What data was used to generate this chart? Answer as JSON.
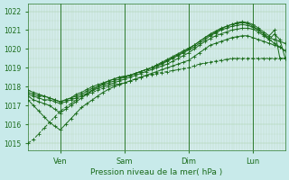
{
  "background_color": "#c8eaea",
  "plot_bg_color": "#d4ecec",
  "grid_color_minor": "#b0d4b0",
  "grid_color_major": "#90bc90",
  "line_color": "#1a6b1a",
  "title": "Pression niveau de la mer( hPa )",
  "ylabel_ticks": [
    1015,
    1016,
    1017,
    1018,
    1019,
    1020,
    1021,
    1022
  ],
  "ylim": [
    1014.6,
    1022.4
  ],
  "xlim": [
    0,
    96
  ],
  "xtick_positions": [
    12,
    36,
    60,
    84
  ],
  "xtick_labels": [
    "Ven",
    "Sam",
    "Dim",
    "Lun"
  ],
  "vline_positions": [
    12,
    36,
    60,
    84
  ],
  "vline_color": "#2d7a2d",
  "line_width": 0.7,
  "marker_style": "+",
  "marker_size": 2.5,
  "series": [
    {
      "name": "s1_low_dashed",
      "x": [
        0,
        2,
        4,
        6,
        8,
        10,
        12,
        14,
        16,
        18,
        20,
        22,
        24,
        26,
        28,
        30,
        32,
        34,
        36,
        38,
        40,
        42,
        44,
        46,
        48,
        50,
        52,
        54,
        56,
        58,
        60,
        62,
        64,
        66,
        68,
        70,
        72,
        74,
        76,
        78,
        80,
        82,
        84,
        86,
        88,
        90,
        92,
        94,
        96
      ],
      "y": [
        1015.0,
        1015.2,
        1015.5,
        1015.8,
        1016.1,
        1016.4,
        1016.7,
        1016.9,
        1017.1,
        1017.3,
        1017.5,
        1017.6,
        1017.7,
        1017.8,
        1017.9,
        1018.0,
        1018.1,
        1018.15,
        1018.2,
        1018.3,
        1018.4,
        1018.5,
        1018.6,
        1018.65,
        1018.7,
        1018.75,
        1018.8,
        1018.85,
        1018.9,
        1018.95,
        1019.0,
        1019.1,
        1019.2,
        1019.25,
        1019.3,
        1019.35,
        1019.4,
        1019.45,
        1019.5,
        1019.5,
        1019.5,
        1019.5,
        1019.5,
        1019.5,
        1019.5,
        1019.5,
        1019.5,
        1019.5,
        1019.5
      ],
      "dashed": true
    },
    {
      "name": "s2_dip_low",
      "x": [
        0,
        2,
        4,
        6,
        8,
        10,
        12,
        14,
        16,
        18,
        20,
        22,
        24,
        26,
        28,
        30,
        32,
        34,
        36,
        38,
        40,
        42,
        44,
        46,
        48,
        50,
        52,
        54,
        56,
        58,
        60,
        62,
        64,
        66,
        68,
        70,
        72,
        74,
        76,
        78,
        80,
        82,
        84,
        86,
        88,
        90,
        92,
        94,
        96
      ],
      "y": [
        1017.3,
        1017.0,
        1016.7,
        1016.4,
        1016.1,
        1015.9,
        1015.7,
        1016.0,
        1016.3,
        1016.6,
        1016.9,
        1017.1,
        1017.3,
        1017.5,
        1017.7,
        1017.85,
        1018.0,
        1018.1,
        1018.2,
        1018.3,
        1018.4,
        1018.5,
        1018.6,
        1018.7,
        1018.8,
        1018.9,
        1019.0,
        1019.1,
        1019.2,
        1019.3,
        1019.4,
        1019.6,
        1019.8,
        1020.0,
        1020.2,
        1020.3,
        1020.4,
        1020.5,
        1020.6,
        1020.65,
        1020.7,
        1020.7,
        1020.6,
        1020.5,
        1020.4,
        1020.3,
        1020.2,
        1020.1,
        1019.9
      ],
      "dashed": false
    },
    {
      "name": "s3_top_arc",
      "x": [
        0,
        2,
        4,
        6,
        8,
        10,
        12,
        14,
        16,
        18,
        20,
        22,
        24,
        26,
        28,
        30,
        32,
        34,
        36,
        38,
        40,
        42,
        44,
        46,
        48,
        50,
        52,
        54,
        56,
        58,
        60,
        62,
        64,
        66,
        68,
        70,
        72,
        74,
        76,
        78,
        80,
        82,
        84,
        86,
        88,
        90,
        92,
        94,
        96
      ],
      "y": [
        1017.5,
        1017.3,
        1017.2,
        1017.1,
        1017.0,
        1016.8,
        1016.6,
        1016.8,
        1017.0,
        1017.2,
        1017.4,
        1017.6,
        1017.8,
        1018.0,
        1018.15,
        1018.3,
        1018.4,
        1018.5,
        1018.55,
        1018.6,
        1018.7,
        1018.8,
        1018.9,
        1019.0,
        1019.1,
        1019.25,
        1019.4,
        1019.55,
        1019.7,
        1019.85,
        1020.0,
        1020.2,
        1020.4,
        1020.6,
        1020.8,
        1020.95,
        1021.1,
        1021.2,
        1021.3,
        1021.35,
        1021.4,
        1021.35,
        1021.2,
        1021.0,
        1020.8,
        1020.6,
        1020.5,
        1020.4,
        1020.3
      ],
      "dashed": false
    },
    {
      "name": "s4_mid",
      "x": [
        0,
        2,
        4,
        6,
        8,
        10,
        12,
        14,
        16,
        18,
        20,
        22,
        24,
        26,
        28,
        30,
        32,
        34,
        36,
        38,
        40,
        42,
        44,
        46,
        48,
        50,
        52,
        54,
        56,
        58,
        60,
        62,
        64,
        66,
        68,
        70,
        72,
        74,
        76,
        78,
        80,
        82,
        84,
        86,
        88,
        90,
        92,
        94,
        96
      ],
      "y": [
        1017.6,
        1017.5,
        1017.4,
        1017.3,
        1017.3,
        1017.2,
        1017.1,
        1017.2,
        1017.3,
        1017.4,
        1017.5,
        1017.65,
        1017.8,
        1017.9,
        1018.0,
        1018.1,
        1018.2,
        1018.3,
        1018.4,
        1018.5,
        1018.6,
        1018.7,
        1018.8,
        1018.9,
        1019.0,
        1019.1,
        1019.2,
        1019.35,
        1019.5,
        1019.65,
        1019.8,
        1020.0,
        1020.2,
        1020.4,
        1020.55,
        1020.7,
        1020.8,
        1020.9,
        1021.0,
        1021.05,
        1021.1,
        1021.1,
        1021.05,
        1020.9,
        1020.7,
        1020.5,
        1020.3,
        1020.1,
        1019.9
      ],
      "dashed": false
    },
    {
      "name": "s5_peak_zigzag",
      "x": [
        0,
        2,
        4,
        6,
        8,
        10,
        12,
        14,
        16,
        18,
        20,
        22,
        24,
        26,
        28,
        30,
        32,
        34,
        36,
        38,
        40,
        42,
        44,
        46,
        48,
        50,
        52,
        54,
        56,
        58,
        60,
        62,
        64,
        66,
        68,
        70,
        72,
        74,
        76,
        78,
        80,
        82,
        84,
        86,
        88,
        90,
        92,
        94,
        96
      ],
      "y": [
        1017.7,
        1017.6,
        1017.5,
        1017.5,
        1017.4,
        1017.3,
        1017.2,
        1017.3,
        1017.4,
        1017.5,
        1017.6,
        1017.75,
        1017.9,
        1018.0,
        1018.1,
        1018.2,
        1018.3,
        1018.4,
        1018.5,
        1018.6,
        1018.7,
        1018.8,
        1018.9,
        1019.0,
        1019.1,
        1019.2,
        1019.35,
        1019.5,
        1019.65,
        1019.8,
        1019.95,
        1020.1,
        1020.3,
        1020.5,
        1020.7,
        1020.85,
        1021.0,
        1021.1,
        1021.2,
        1021.25,
        1021.3,
        1021.25,
        1021.15,
        1021.0,
        1020.8,
        1020.5,
        1020.8,
        1020.5,
        1019.5
      ],
      "dashed": false
    },
    {
      "name": "s6_high_drop",
      "x": [
        0,
        2,
        4,
        6,
        8,
        10,
        12,
        14,
        16,
        18,
        20,
        22,
        24,
        26,
        28,
        30,
        32,
        34,
        36,
        38,
        40,
        42,
        44,
        46,
        48,
        50,
        52,
        54,
        56,
        58,
        60,
        62,
        64,
        66,
        68,
        70,
        72,
        74,
        76,
        78,
        80,
        82,
        84,
        86,
        88,
        90,
        92,
        94,
        96
      ],
      "y": [
        1017.8,
        1017.7,
        1017.6,
        1017.5,
        1017.4,
        1017.3,
        1017.2,
        1017.3,
        1017.4,
        1017.6,
        1017.7,
        1017.85,
        1018.0,
        1018.1,
        1018.2,
        1018.3,
        1018.4,
        1018.5,
        1018.55,
        1018.6,
        1018.7,
        1018.8,
        1018.9,
        1019.0,
        1019.15,
        1019.3,
        1019.45,
        1019.6,
        1019.75,
        1019.9,
        1020.05,
        1020.2,
        1020.4,
        1020.6,
        1020.75,
        1020.9,
        1021.05,
        1021.2,
        1021.3,
        1021.4,
        1021.45,
        1021.4,
        1021.3,
        1021.1,
        1020.9,
        1020.7,
        1021.0,
        1019.5,
        1019.5
      ],
      "dashed": false
    }
  ]
}
